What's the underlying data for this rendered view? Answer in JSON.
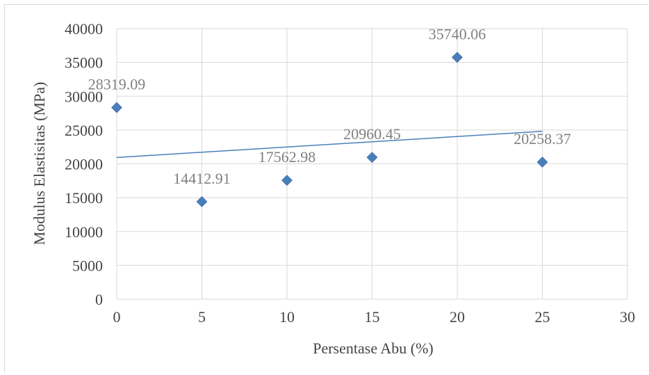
{
  "chart_data": {
    "type": "scatter",
    "title": "",
    "xlabel": "Persentase Abu (%)",
    "ylabel": "Modulus Elastisitas (MPa)",
    "xlim": [
      0,
      30
    ],
    "ylim": [
      0,
      40000
    ],
    "x_ticks": [
      0,
      5,
      10,
      15,
      20,
      25,
      30
    ],
    "y_ticks": [
      0,
      5000,
      10000,
      15000,
      20000,
      25000,
      30000,
      35000,
      40000
    ],
    "grid": true,
    "legend": "none",
    "marker": "diamond",
    "marker_color": "#4a7ebb",
    "trendline": {
      "type": "linear",
      "x_range": [
        0,
        25
      ],
      "color": "#4a7ebb"
    },
    "series": [
      {
        "x": [
          0,
          5,
          10,
          15,
          20,
          25
        ],
        "y": [
          28319.09,
          14412.91,
          17562.98,
          20960.45,
          35740.06,
          20258.37
        ],
        "labels": [
          "28319.09",
          "14412.91",
          "17562.98",
          "20960.45",
          "35740.06",
          "20258.37"
        ]
      }
    ]
  }
}
